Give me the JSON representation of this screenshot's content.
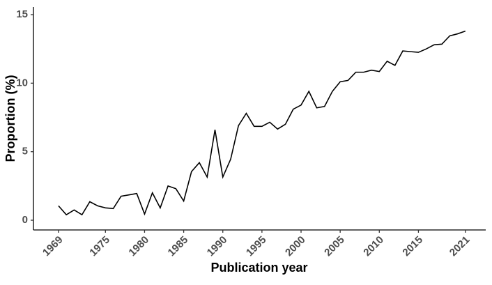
{
  "chart_data": {
    "type": "line",
    "x_label": "Publication year",
    "y_label": "Proportion (%)",
    "x": [
      1969,
      1970,
      1971,
      1972,
      1973,
      1974,
      1975,
      1976,
      1977,
      1978,
      1979,
      1980,
      1981,
      1982,
      1983,
      1984,
      1985,
      1986,
      1987,
      1988,
      1989,
      1990,
      1991,
      1992,
      1993,
      1994,
      1995,
      1996,
      1997,
      1998,
      1999,
      2000,
      2001,
      2002,
      2003,
      2004,
      2005,
      2006,
      2007,
      2008,
      2009,
      2010,
      2011,
      2012,
      2013,
      2014,
      2015,
      2016,
      2017,
      2018,
      2019,
      2020,
      2021
    ],
    "values": [
      1.05,
      0.4,
      0.75,
      0.4,
      1.35,
      1.05,
      0.9,
      0.85,
      1.75,
      1.85,
      1.95,
      0.45,
      2.0,
      0.9,
      2.5,
      2.3,
      1.4,
      3.55,
      4.2,
      3.15,
      6.6,
      3.15,
      4.45,
      6.9,
      7.8,
      6.85,
      6.85,
      7.15,
      6.65,
      7.0,
      8.1,
      8.4,
      9.4,
      8.2,
      8.3,
      9.4,
      10.1,
      10.2,
      10.8,
      10.8,
      10.95,
      10.85,
      11.6,
      11.3,
      12.35,
      12.3,
      12.25,
      12.5,
      12.8,
      12.85,
      13.45,
      13.6,
      13.8
    ],
    "color": "#000000",
    "xlim": [
      1965.8,
      2023.6
    ],
    "xticks": [
      1969,
      1975,
      1980,
      1985,
      1990,
      1995,
      2000,
      2005,
      2010,
      2015,
      2021
    ],
    "ylim": [
      -0.71,
      15.56
    ],
    "yticks": [
      0,
      5,
      10,
      15
    ]
  }
}
